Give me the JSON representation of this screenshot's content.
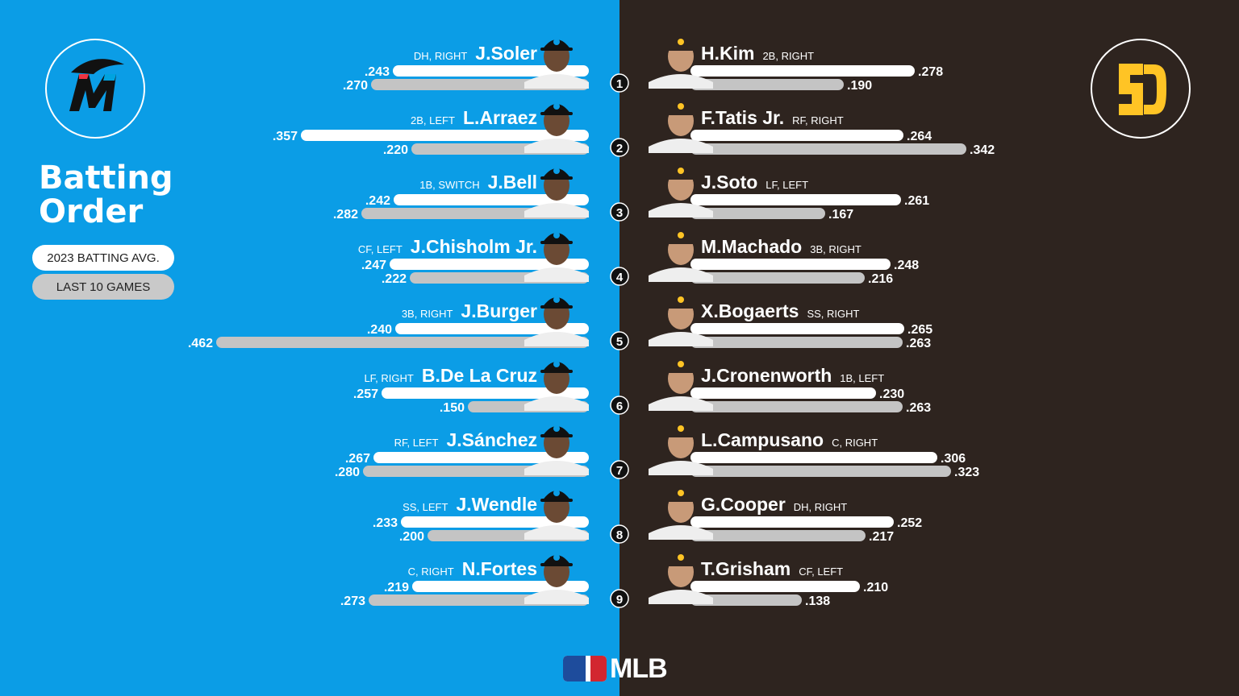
{
  "title": "Batting Order",
  "legend": {
    "avg_label": "2023 BATTING AVG.",
    "last10_label": "LAST 10 GAMES"
  },
  "brand": {
    "text": "MLB"
  },
  "colors": {
    "marlins_bg": "#0b9de6",
    "padres_bg": "#2e241f",
    "avg_bar": "#ffffff",
    "last10_bar": "#c4c4c4",
    "padres_gold": "#ffc425"
  },
  "chart_data": [
    {
      "type": "bar",
      "team": "Marlins",
      "orientation": "horizontal",
      "categories": [
        "1",
        "2",
        "3",
        "4",
        "5",
        "6",
        "7",
        "8",
        "9"
      ],
      "players": [
        "J.Soler",
        "L.Arraez",
        "J.Bell",
        "J.Chisholm Jr.",
        "J.Burger",
        "B.De La Cruz",
        "J.Sánchez",
        "J.Wendle",
        "N.Fortes"
      ],
      "positions": [
        "DH, RIGHT",
        "2B, LEFT",
        "1B, SWITCH",
        "CF, LEFT",
        "3B, RIGHT",
        "LF, RIGHT",
        "RF, LEFT",
        "SS, LEFT",
        "C, RIGHT"
      ],
      "series": [
        {
          "name": "2023 BATTING AVG.",
          "values": [
            0.243,
            0.357,
            0.242,
            0.247,
            0.24,
            0.257,
            0.267,
            0.233,
            0.219
          ],
          "labels": [
            ".243",
            ".357",
            ".242",
            ".247",
            ".240",
            ".257",
            ".267",
            ".233",
            ".219"
          ]
        },
        {
          "name": "LAST 10 GAMES",
          "values": [
            0.27,
            0.22,
            0.282,
            0.222,
            0.462,
            0.15,
            0.28,
            0.2,
            0.273
          ],
          "labels": [
            ".270",
            ".220",
            ".282",
            ".222",
            ".462",
            ".150",
            ".280",
            ".200",
            ".273"
          ]
        }
      ]
    },
    {
      "type": "bar",
      "team": "Padres",
      "orientation": "horizontal",
      "categories": [
        "1",
        "2",
        "3",
        "4",
        "5",
        "6",
        "7",
        "8",
        "9"
      ],
      "players": [
        "H.Kim",
        "F.Tatis Jr.",
        "J.Soto",
        "M.Machado",
        "X.Bogaerts",
        "J.Cronenworth",
        "L.Campusano",
        "G.Cooper",
        "T.Grisham"
      ],
      "positions": [
        "2B, RIGHT",
        "RF, RIGHT",
        "LF, LEFT",
        "3B, RIGHT",
        "SS, RIGHT",
        "1B, LEFT",
        "C, RIGHT",
        "DH, RIGHT",
        "CF, LEFT"
      ],
      "series": [
        {
          "name": "2023 BATTING AVG.",
          "values": [
            0.278,
            0.264,
            0.261,
            0.248,
            0.265,
            0.23,
            0.306,
            0.252,
            0.21
          ],
          "labels": [
            ".278",
            ".264",
            ".261",
            ".248",
            ".265",
            ".230",
            ".306",
            ".252",
            ".210"
          ]
        },
        {
          "name": "LAST 10 GAMES",
          "values": [
            0.19,
            0.342,
            0.167,
            0.216,
            0.263,
            0.263,
            0.323,
            0.217,
            0.138
          ],
          "labels": [
            ".190",
            ".342",
            ".167",
            ".216",
            ".263",
            ".263",
            ".323",
            ".217",
            ".138"
          ]
        }
      ]
    }
  ]
}
